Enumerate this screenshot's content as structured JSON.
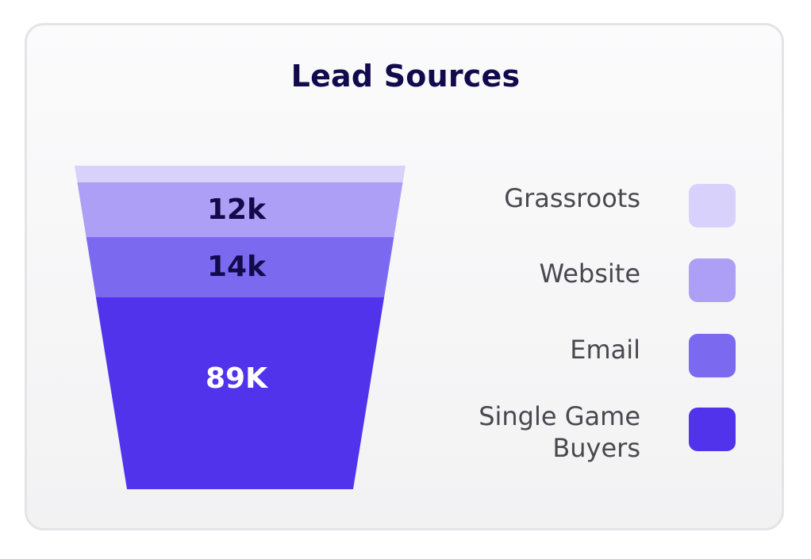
{
  "chart_data": {
    "type": "funnel",
    "title": "Lead Sources",
    "stages": [
      {
        "name": "Grassroots",
        "label": "",
        "color": "#d8d1fb"
      },
      {
        "name": "Website",
        "label": "12k",
        "color": "#ad9ff5"
      },
      {
        "name": "Email",
        "label": "14k",
        "color": "#7b6af0"
      },
      {
        "name": "Single Game Buyers",
        "label": "89K",
        "color": "#5133eb"
      }
    ],
    "legend_placement": "right"
  },
  "legend": [
    {
      "label": "Grassroots"
    },
    {
      "label": "Website"
    },
    {
      "label": "Email"
    },
    {
      "label_line1": "Single Game",
      "label_line2": "Buyers"
    }
  ]
}
